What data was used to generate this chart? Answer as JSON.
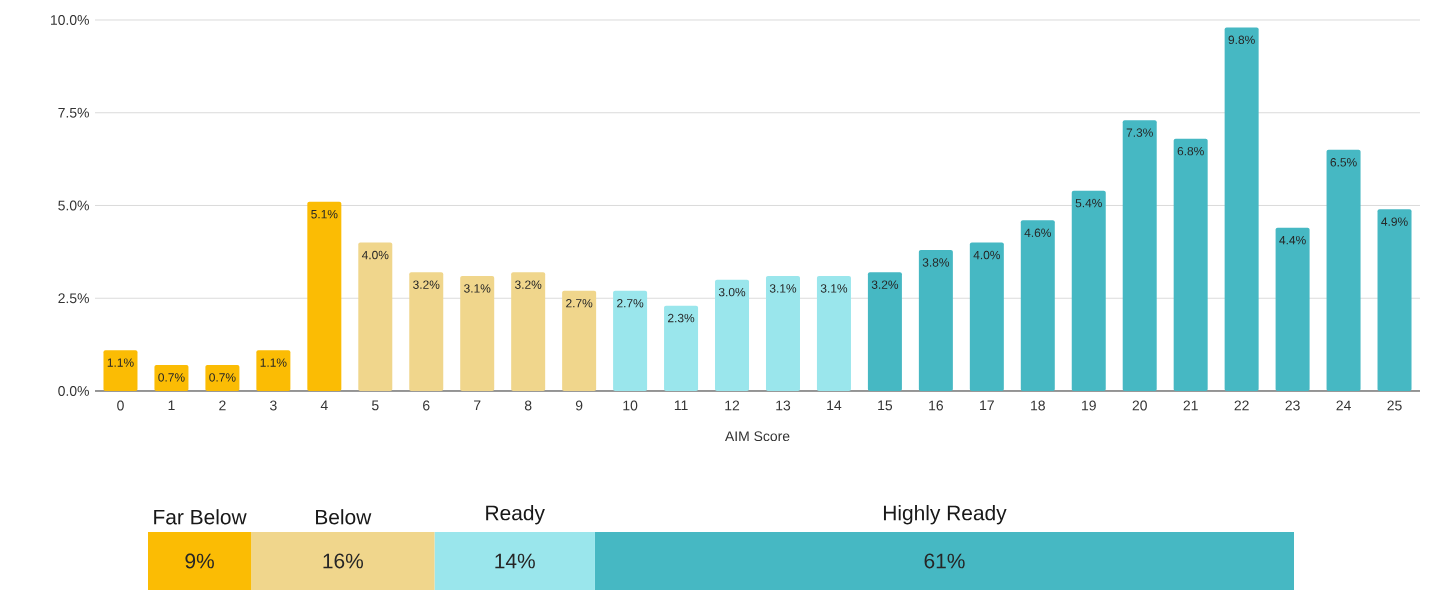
{
  "chart_data": [
    {
      "type": "bar",
      "xlabel": "AIM Score",
      "categories": [
        "0",
        "1",
        "2",
        "3",
        "4",
        "5",
        "6",
        "7",
        "8",
        "9",
        "10",
        "11",
        "12",
        "13",
        "14",
        "15",
        "16",
        "17",
        "18",
        "19",
        "20",
        "21",
        "22",
        "23",
        "24",
        "25"
      ],
      "values": [
        1.1,
        0.7,
        0.7,
        1.1,
        5.1,
        4.0,
        3.2,
        3.1,
        3.2,
        2.7,
        2.7,
        2.3,
        3.0,
        3.1,
        3.1,
        3.2,
        3.8,
        4.0,
        4.6,
        5.4,
        7.3,
        6.8,
        9.8,
        4.4,
        6.5,
        4.9
      ],
      "value_labels": [
        "1.1%",
        "0.7%",
        "0.7%",
        "1.1%",
        "5.1%",
        "4.0%",
        "3.2%",
        "3.1%",
        "3.2%",
        "2.7%",
        "2.7%",
        "2.3%",
        "3.0%",
        "3.1%",
        "3.1%",
        "3.2%",
        "3.8%",
        "4.0%",
        "4.6%",
        "5.4%",
        "7.3%",
        "6.8%",
        "9.8%",
        "4.4%",
        "6.5%",
        "4.9%"
      ],
      "colors": [
        "#fbbc04",
        "#fbbc04",
        "#fbbc04",
        "#fbbc04",
        "#fbbc04",
        "#f0d68c",
        "#f0d68c",
        "#f0d68c",
        "#f0d68c",
        "#f0d68c",
        "#9ae6ec",
        "#9ae6ec",
        "#9ae6ec",
        "#9ae6ec",
        "#9ae6ec",
        "#46b8c3",
        "#46b8c3",
        "#46b8c3",
        "#46b8c3",
        "#46b8c3",
        "#46b8c3",
        "#46b8c3",
        "#46b8c3",
        "#46b8c3",
        "#46b8c3",
        "#46b8c3"
      ],
      "ylim": [
        0,
        10
      ],
      "yticks": [
        {
          "value": 0,
          "label": "0.0%"
        },
        {
          "value": 2.5,
          "label": "2.5%"
        },
        {
          "value": 5,
          "label": "5.0%"
        },
        {
          "value": 7.5,
          "label": "7.5%"
        },
        {
          "value": 10,
          "label": "10.0%"
        }
      ],
      "grid": "y"
    },
    {
      "type": "bar",
      "orientation": "horizontal",
      "stacked": true,
      "categories": [
        null
      ],
      "series": [
        {
          "name": "Far Below",
          "color": "#fbbc04",
          "values": [
            9
          ],
          "value_labels": [
            "9%"
          ]
        },
        {
          "name": "Below",
          "color": "#f0d68c",
          "values": [
            16
          ],
          "value_labels": [
            "16%"
          ]
        },
        {
          "name": "Ready",
          "color": "#9ae6ec",
          "values": [
            14
          ],
          "value_labels": [
            "14%"
          ]
        },
        {
          "name": "Highly Ready",
          "color": "#46b8c3",
          "values": [
            61
          ],
          "value_labels": [
            "61%"
          ]
        }
      ]
    }
  ]
}
